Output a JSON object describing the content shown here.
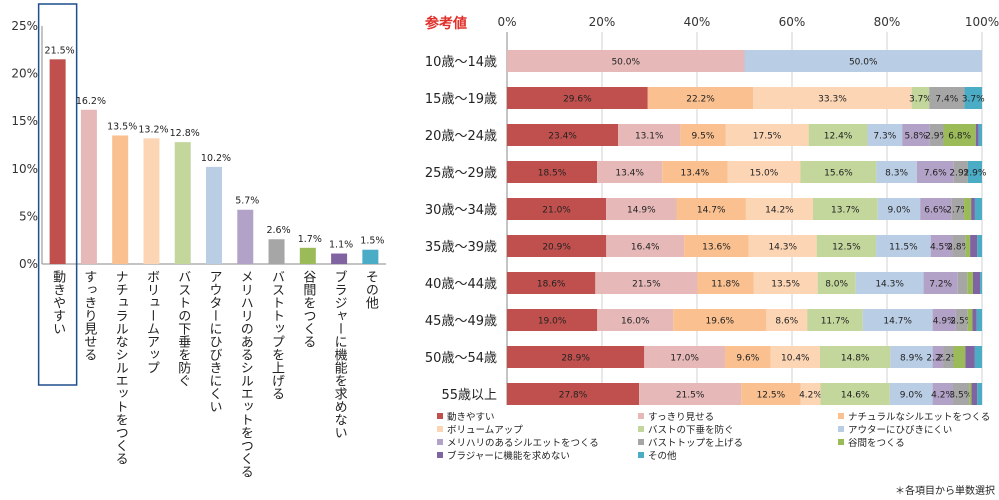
{
  "chart_data": [
    {
      "type": "bar",
      "ylim": [
        0,
        25
      ],
      "yticks": [
        "0%",
        "5%",
        "10%",
        "15%",
        "20%",
        "25%"
      ],
      "categories": [
        "動きやすい",
        "すっきり見せる",
        "ナチュラルなシルエットをつくる",
        "ボリュームアップ",
        "バストの下垂を防ぐ",
        "アウターにひびきにくい",
        "メリハリのあるシルエットをつくる",
        "バストトップを上げる",
        "谷間をつくる",
        "ブラジャーに機能を求めない",
        "その他"
      ],
      "values": [
        21.5,
        16.2,
        13.5,
        13.2,
        12.8,
        10.2,
        5.7,
        2.6,
        1.7,
        1.1,
        1.5
      ],
      "value_labels": [
        "21.5%",
        "16.2%",
        "13.5%",
        "13.2%",
        "12.8%",
        "10.2%",
        "5.7%",
        "2.6%",
        "1.7%",
        "1.1%",
        "1.5%"
      ],
      "colors": [
        "#c0504d",
        "#e6b9b8",
        "#fac090",
        "#fcd5b5",
        "#c3d69b",
        "#b9cde5",
        "#b3a2c7",
        "#a6a6a6",
        "#9bbb59",
        "#8064a2",
        "#4bacc6"
      ],
      "highlighted_category": "動きやすい"
    },
    {
      "type": "stacked-bar-horizontal",
      "title": "参考値",
      "xlim": [
        0,
        100
      ],
      "xticks": [
        "0%",
        "20%",
        "40%",
        "60%",
        "80%",
        "100%"
      ],
      "categories": [
        "10歳～14歳",
        "15歳～19歳",
        "20歳～24歳",
        "25歳～29歳",
        "30歳～34歳",
        "35歳～39歳",
        "40歳～44歳",
        "45歳～49歳",
        "50歳～54歳",
        "55歳以上"
      ],
      "series": [
        {
          "name": "動きやすい",
          "color": "#c0504d",
          "values": [
            0,
            29.6,
            23.4,
            18.5,
            21.0,
            20.9,
            18.6,
            19.0,
            28.9,
            27.8
          ],
          "labels": [
            "",
            "29.6%",
            "23.4%",
            "18.5%",
            "21.0%",
            "20.9%",
            "18.6%",
            "19.0%",
            "28.9%",
            "27.8%"
          ]
        },
        {
          "name": "すっきり見せる",
          "color": "#e6b9b8",
          "values": [
            50.0,
            0,
            13.1,
            13.4,
            14.9,
            16.4,
            21.5,
            16.0,
            17.0,
            21.5
          ],
          "labels": [
            "50.0%",
            "",
            "13.1%",
            "13.4%",
            "14.9%",
            "16.4%",
            "21.5%",
            "16.0%",
            "17.0%",
            "21.5%"
          ]
        },
        {
          "name": "ナチュラルなシルエットをつくる",
          "color": "#fac090",
          "values": [
            0,
            22.2,
            9.5,
            13.4,
            14.7,
            13.6,
            11.8,
            19.6,
            9.6,
            12.5
          ],
          "labels": [
            "",
            "22.2%",
            "9.5%",
            "13.4%",
            "14.7%",
            "13.6%",
            "11.8%",
            "19.6%",
            "9.6%",
            "12.5%"
          ]
        },
        {
          "name": "ボリュームアップ",
          "color": "#fcd5b5",
          "values": [
            0,
            33.3,
            17.5,
            15.0,
            14.2,
            14.3,
            13.5,
            8.6,
            10.4,
            4.2
          ],
          "labels": [
            "",
            "33.3%",
            "17.5%",
            "15.0%",
            "14.2%",
            "14.3%",
            "13.5%",
            "8.6%",
            "10.4%",
            "4.2%"
          ]
        },
        {
          "name": "バストの下垂を防ぐ",
          "color": "#c3d69b",
          "values": [
            0,
            3.7,
            12.4,
            15.6,
            13.7,
            12.5,
            8.0,
            11.7,
            14.8,
            14.6
          ],
          "labels": [
            "",
            "3.7%",
            "12.4%",
            "15.6%",
            "13.7%",
            "12.5%",
            "8.0%",
            "11.7%",
            "14.8%",
            "14.6%"
          ]
        },
        {
          "name": "アウターにひびきにくい",
          "color": "#b9cde5",
          "values": [
            50.0,
            0,
            7.3,
            8.3,
            9.0,
            11.5,
            14.3,
            14.7,
            8.9,
            9.0
          ],
          "labels": [
            "50.0%",
            "",
            "7.3%",
            "8.3%",
            "9.0%",
            "11.5%",
            "14.3%",
            "14.7%",
            "8.9%",
            "9.0%"
          ]
        },
        {
          "name": "メリハリのあるシルエットをつくる",
          "color": "#b3a2c7",
          "values": [
            0,
            0,
            5.8,
            7.6,
            6.6,
            4.5,
            7.2,
            4.9,
            2.2,
            4.2
          ],
          "labels": [
            "",
            "",
            "5.8%",
            "7.6%",
            "6.6%",
            "4.5%",
            "7.2%",
            "4.9%",
            "2.2%",
            "4.2%"
          ]
        },
        {
          "name": "バストトップを上げる",
          "color": "#a6a6a6",
          "values": [
            0,
            7.4,
            2.9,
            2.9,
            2.7,
            2.8,
            2.0,
            2.5,
            2.2,
            3.5
          ],
          "labels": [
            "",
            "7.4%",
            "2.9%",
            "2.9%",
            "2.7%",
            "2.8%",
            "",
            "2.5%",
            "2.2%",
            "3.5%"
          ]
        },
        {
          "name": "谷間をつくる",
          "color": "#9bbb59",
          "values": [
            0,
            0,
            6.8,
            0,
            1.5,
            1.0,
            1.2,
            1.0,
            2.5,
            0.5
          ],
          "labels": [
            "",
            "",
            "6.8%",
            "",
            "",
            "",
            "",
            "",
            "",
            ""
          ]
        },
        {
          "name": "ブラジャーに機能を求めない",
          "color": "#8064a2",
          "values": [
            0,
            0,
            0.6,
            0,
            0.8,
            1.5,
            1.5,
            0.9,
            2.0,
            1.2
          ],
          "labels": [
            "",
            "",
            "",
            "",
            "",
            "",
            "",
            "",
            "",
            ""
          ]
        },
        {
          "name": "その他",
          "color": "#4bacc6",
          "values": [
            0,
            3.7,
            0.7,
            2.9,
            1.5,
            1.0,
            0.4,
            1.1,
            1.5,
            1.0
          ],
          "labels": [
            "",
            "3.7%",
            "",
            "2.9%",
            "",
            "",
            "",
            "",
            "",
            ""
          ]
        }
      ],
      "legend": [
        "動きやすい",
        "すっきり見せる",
        "ナチュラルなシルエットをつくる",
        "ボリュームアップ",
        "バストの下垂を防ぐ",
        "アウターにひびきにくい",
        "メリハリのあるシルエットをつくる",
        "バストトップを上げる",
        "谷間をつくる",
        "ブラジャーに機能を求めない",
        "その他"
      ]
    }
  ],
  "footnote": "＊各項目から単数選択"
}
